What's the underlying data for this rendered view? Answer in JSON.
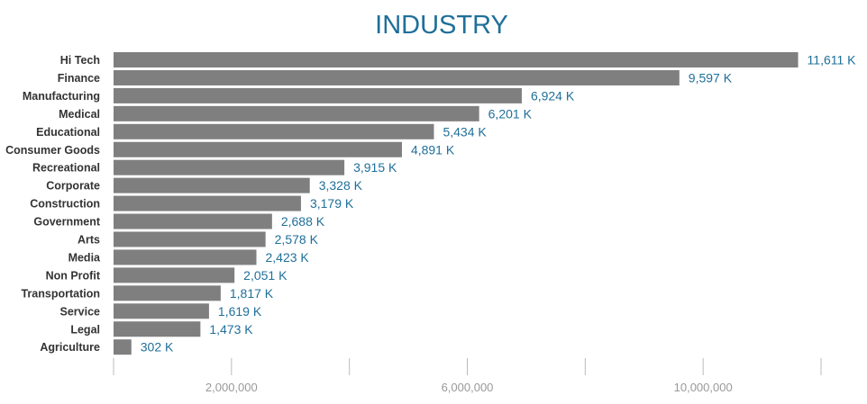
{
  "chart_data": {
    "type": "bar",
    "orientation": "horizontal",
    "title": "INDUSTRY",
    "xlabel": "",
    "ylabel": "",
    "categories": [
      "Hi Tech",
      "Finance",
      "Manufacturing",
      "Medical",
      "Educational",
      "Consumer Goods",
      "Recreational",
      "Corporate",
      "Construction",
      "Government",
      "Arts",
      "Media",
      "Non Profit",
      "Transportation",
      "Service",
      "Legal",
      "Agriculture"
    ],
    "values": [
      11611000,
      9597000,
      6924000,
      6201000,
      5434000,
      4891000,
      3915000,
      3328000,
      3179000,
      2688000,
      2578000,
      2423000,
      2051000,
      1817000,
      1619000,
      1473000,
      302000
    ],
    "value_labels": [
      "11,611 K",
      "9,597 K",
      "6,924 K",
      "6,201 K",
      "5,434 K",
      "4,891 K",
      "3,915 K",
      "3,328 K",
      "3,179 K",
      "2,688 K",
      "2,578 K",
      "2,423 K",
      "2,051 K",
      "1,817 K",
      "1,619 K",
      "1,473 K",
      "302 K"
    ],
    "xlim": [
      0,
      12000000
    ],
    "x_ticks": [
      0,
      2000000,
      4000000,
      6000000,
      8000000,
      10000000,
      12000000
    ],
    "x_tick_labels": [
      {
        "value": 2000000,
        "label": "2,000,000"
      },
      {
        "value": 6000000,
        "label": "6,000,000"
      },
      {
        "value": 10000000,
        "label": "10,000,000"
      }
    ],
    "grid": false,
    "legend": "none",
    "colors": {
      "bar": "#7f7f7f",
      "title": "#1f6f9a",
      "value_label": "#1f6f9a",
      "category_label": "#333333",
      "tick_label": "#999999",
      "axis": "#bbbbbb"
    }
  }
}
